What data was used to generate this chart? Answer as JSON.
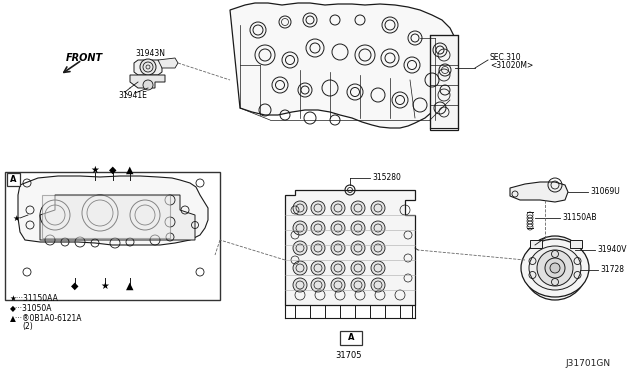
{
  "background_color": "#ffffff",
  "fig_width": 6.4,
  "fig_height": 3.72,
  "dpi": 100,
  "labels": {
    "front": "FRONT",
    "part_31943N": "31943N",
    "part_31941E": "31941E",
    "sec310_line1": "SEC.310",
    "sec310_line2": "<31020M>",
    "part_31528D": "315280",
    "part_31705": "31705",
    "part_31069U": "31069U",
    "part_31150AB": "31150AB",
    "part_31940V": "31940V",
    "part_31728": "31728",
    "legend_star": "★···31150AA",
    "legend_diamond": "◆···31050A",
    "legend_triangle": "▲···®0B1A0-6121A",
    "legend_triangle2": "(2)",
    "label_A_box1": "A",
    "label_A_box2": "A",
    "diagram_code": "J31701GN"
  },
  "colors": {
    "line": "#1a1a1a",
    "light_line": "#555555",
    "dashed": "#666666",
    "bg": "#ffffff"
  }
}
